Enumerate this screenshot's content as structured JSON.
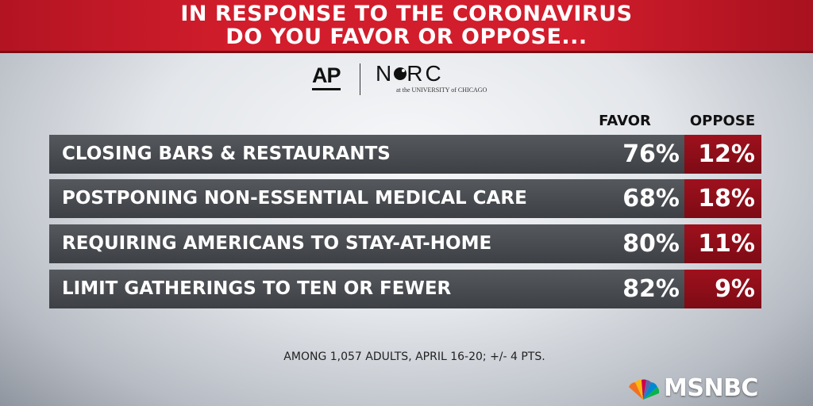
{
  "header": {
    "line1": "IN RESPONSE TO THE CORONAVIRUS",
    "line2": "DO YOU FAVOR OR OPPOSE..."
  },
  "logos": {
    "ap": "AP",
    "norc_left": "N",
    "norc_right": "RC",
    "norc_sub": "at the UNIVERSITY of CHICAGO"
  },
  "chart_data": {
    "type": "table",
    "title": "IN RESPONSE TO THE CORONAVIRUS DO YOU FAVOR OR OPPOSE...",
    "columns": [
      "FAVOR",
      "OPPOSE"
    ],
    "rows": [
      {
        "label": "CLOSING BARS & RESTAURANTS",
        "favor": "76%",
        "oppose": "12%"
      },
      {
        "label": "POSTPONING NON-ESSENTIAL MEDICAL CARE",
        "favor": "68%",
        "oppose": "18%"
      },
      {
        "label": "REQUIRING AMERICANS TO STAY-AT-HOME",
        "favor": "80%",
        "oppose": "11%"
      },
      {
        "label": "LIMIT GATHERINGS TO TEN OR FEWER",
        "favor": "82%",
        "oppose": "9%"
      }
    ],
    "favor_values": [
      76,
      68,
      80,
      82
    ],
    "oppose_values": [
      12,
      18,
      11,
      9
    ],
    "colors": {
      "favor_cell": "#4a4d52",
      "oppose_cell": "#8e0e19"
    }
  },
  "footnote": "AMONG 1,057 ADULTS, APRIL 16-20; +/- 4 PTS.",
  "network": {
    "name": "MSNBC"
  }
}
